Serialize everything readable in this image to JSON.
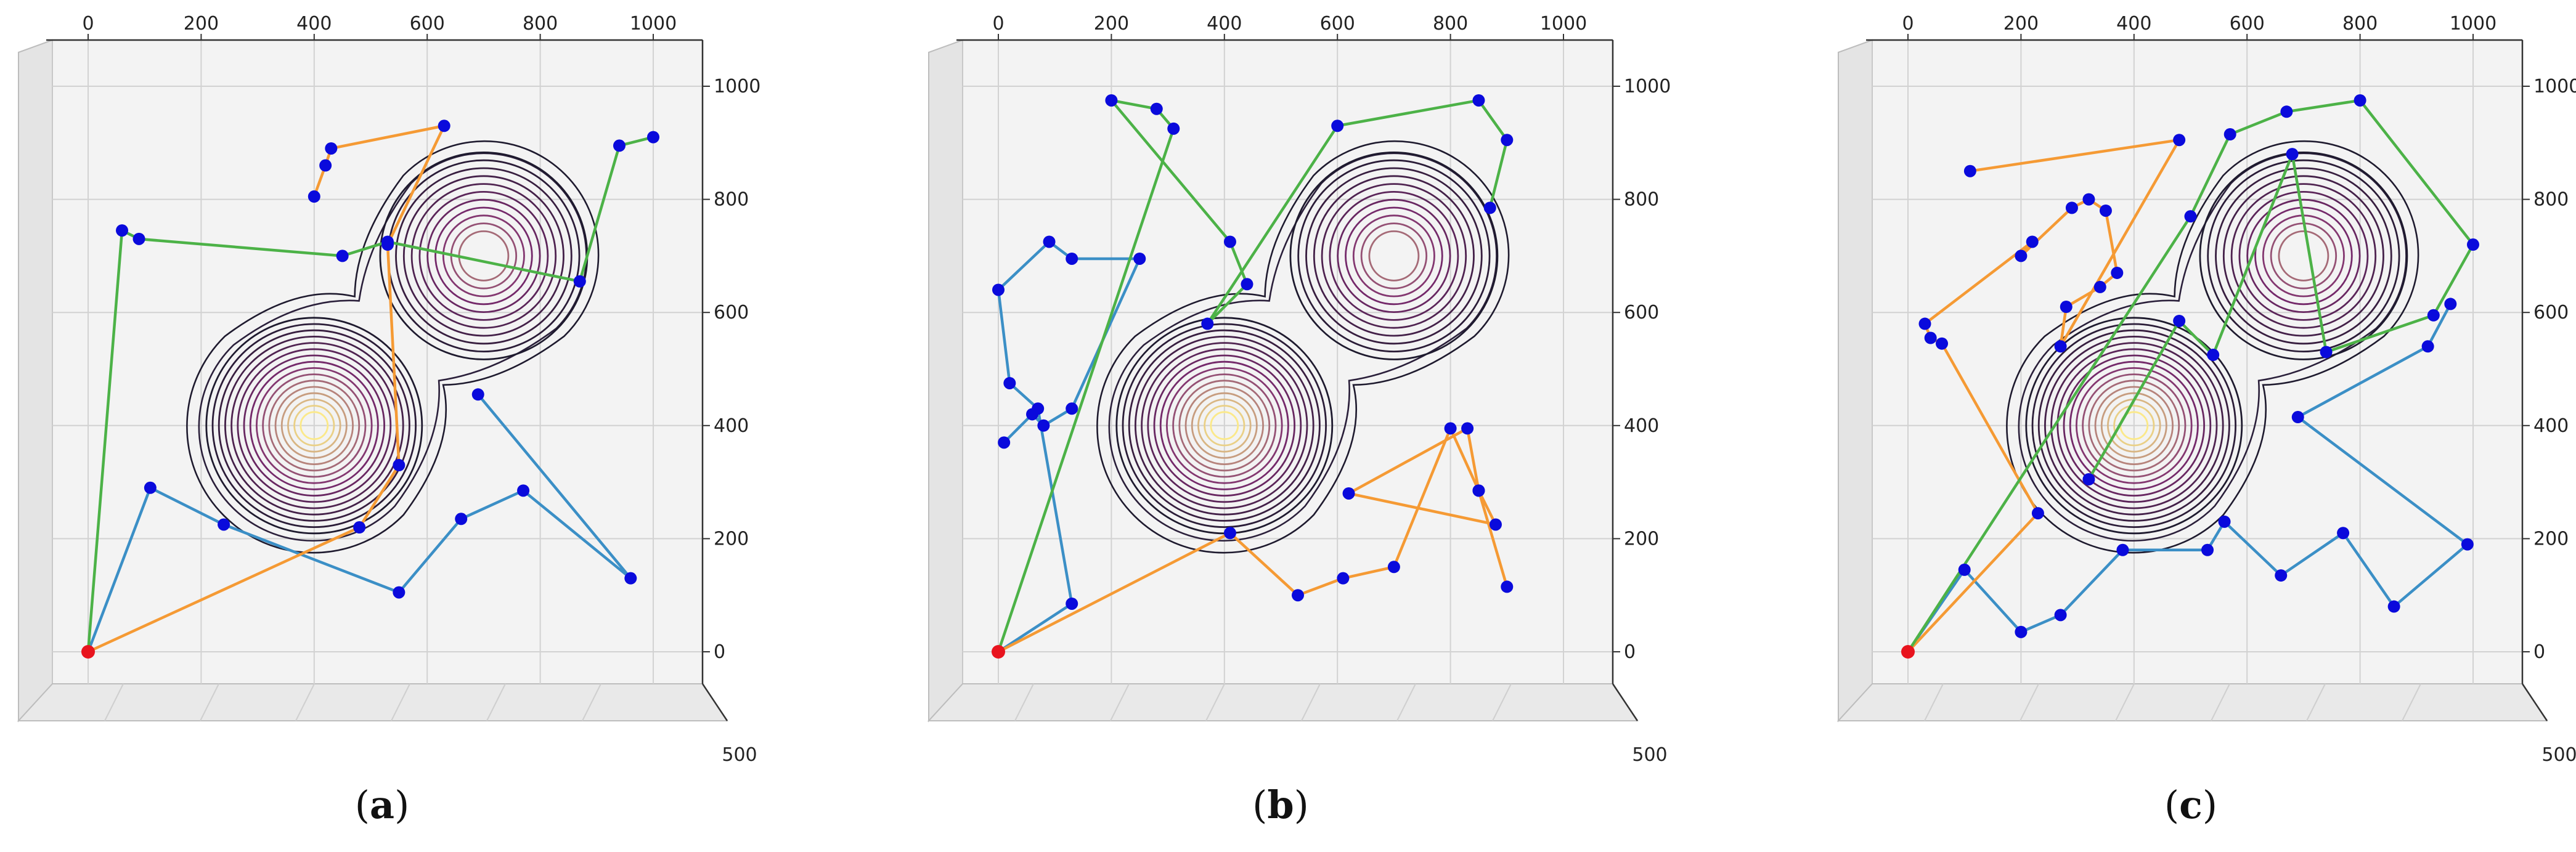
{
  "chart_data": [
    {
      "type": "line",
      "panel_label": "a",
      "x_ticks": [
        0,
        200,
        400,
        600,
        800,
        1000
      ],
      "y_ticks": [
        0,
        200,
        400,
        600,
        800,
        1000
      ],
      "depth_tick": "500",
      "xlim": [
        0,
        1000
      ],
      "ylim": [
        0,
        1000
      ],
      "grid": true,
      "contour_centers": [
        [
          400,
          400
        ],
        [
          700,
          700
        ]
      ],
      "colors": {
        "origin": "#e8141e",
        "point": "#0a0adc",
        "route_blue": "#3b8fc6",
        "route_orange": "#f59a34",
        "route_green": "#4cb247",
        "contour_dark": "#1e1a2e",
        "contour_mid": "#7a2a6e",
        "contour_light": "#fbe98a"
      },
      "origin": [
        0,
        0
      ],
      "series": [
        {
          "color": "blue",
          "x": [
            0,
            110,
            240,
            550,
            660,
            770,
            960,
            690
          ],
          "y": [
            0,
            290,
            225,
            105,
            235,
            285,
            130,
            455
          ]
        },
        {
          "color": "orange",
          "x": [
            0,
            480,
            550,
            530,
            630,
            430,
            420,
            400
          ],
          "y": [
            0,
            220,
            330,
            720,
            930,
            890,
            860,
            805
          ]
        },
        {
          "color": "green",
          "x": [
            0,
            60,
            90,
            450,
            530,
            870,
            940,
            1000
          ],
          "y": [
            0,
            745,
            730,
            700,
            725,
            655,
            895,
            910
          ]
        }
      ]
    },
    {
      "type": "line",
      "panel_label": "b",
      "x_ticks": [
        0,
        200,
        400,
        600,
        800,
        1000
      ],
      "y_ticks": [
        0,
        200,
        400,
        600,
        800,
        1000
      ],
      "depth_tick": "500",
      "xlim": [
        0,
        1000
      ],
      "ylim": [
        0,
        1000
      ],
      "grid": true,
      "contour_centers": [
        [
          400,
          400
        ],
        [
          700,
          700
        ]
      ],
      "colors": {
        "origin": "#e8141e",
        "point": "#0a0adc",
        "route_blue": "#3b8fc6",
        "route_orange": "#f59a34",
        "route_green": "#4cb247",
        "contour_dark": "#1e1a2e",
        "contour_mid": "#7a2a6e",
        "contour_light": "#fbe98a"
      },
      "origin": [
        0,
        0
      ],
      "series": [
        {
          "color": "blue",
          "x": [
            0,
            130,
            70,
            20,
            0,
            90,
            130,
            250,
            130,
            80,
            60,
            10
          ],
          "y": [
            0,
            85,
            430,
            475,
            640,
            725,
            695,
            695,
            430,
            400,
            420,
            370
          ]
        },
        {
          "color": "orange",
          "x": [
            0,
            410,
            530,
            610,
            700,
            800,
            850,
            880,
            620,
            830,
            850,
            900
          ],
          "y": [
            0,
            210,
            100,
            130,
            150,
            395,
            285,
            225,
            280,
            395,
            285,
            115
          ]
        },
        {
          "color": "green",
          "x": [
            0,
            310,
            280,
            200,
            410,
            440,
            370,
            600,
            850,
            900,
            870
          ],
          "y": [
            0,
            925,
            960,
            975,
            725,
            650,
            580,
            930,
            975,
            905,
            785
          ]
        }
      ]
    },
    {
      "type": "line",
      "panel_label": "c",
      "x_ticks": [
        0,
        200,
        400,
        600,
        800,
        1000
      ],
      "y_ticks": [
        0,
        200,
        400,
        600,
        800,
        1000
      ],
      "depth_tick": "500",
      "xlim": [
        0,
        1000
      ],
      "ylim": [
        0,
        1000
      ],
      "grid": true,
      "contour_centers": [
        [
          400,
          400
        ],
        [
          700,
          700
        ]
      ],
      "colors": {
        "origin": "#e8141e",
        "point": "#0a0adc",
        "route_blue": "#3b8fc6",
        "route_orange": "#f59a34",
        "route_green": "#4cb247",
        "contour_dark": "#1e1a2e",
        "contour_mid": "#7a2a6e",
        "contour_light": "#fbe98a"
      },
      "origin": [
        0,
        0
      ],
      "series": [
        {
          "color": "blue",
          "x": [
            0,
            100,
            200,
            270,
            380,
            530,
            560,
            660,
            770,
            860,
            990,
            690,
            920,
            960
          ],
          "y": [
            0,
            145,
            35,
            65,
            180,
            180,
            230,
            135,
            210,
            80,
            190,
            415,
            540,
            615
          ]
        },
        {
          "color": "orange",
          "x": [
            0,
            230,
            60,
            40,
            30,
            220,
            200,
            290,
            320,
            350,
            370,
            340,
            280,
            270,
            480,
            110
          ],
          "y": [
            0,
            245,
            545,
            555,
            580,
            725,
            700,
            785,
            800,
            780,
            670,
            645,
            610,
            540,
            905,
            850
          ]
        },
        {
          "color": "green",
          "x": [
            0,
            500,
            570,
            670,
            800,
            1000,
            930,
            740,
            680,
            540,
            480,
            320
          ],
          "y": [
            0,
            770,
            915,
            955,
            975,
            720,
            595,
            530,
            880,
            525,
            585,
            305
          ]
        }
      ]
    }
  ],
  "captions": [
    {
      "open": "(",
      "letter": "a",
      "close": ")"
    },
    {
      "open": "(",
      "letter": "b",
      "close": ")"
    },
    {
      "open": "(",
      "letter": "c",
      "close": ")"
    }
  ]
}
